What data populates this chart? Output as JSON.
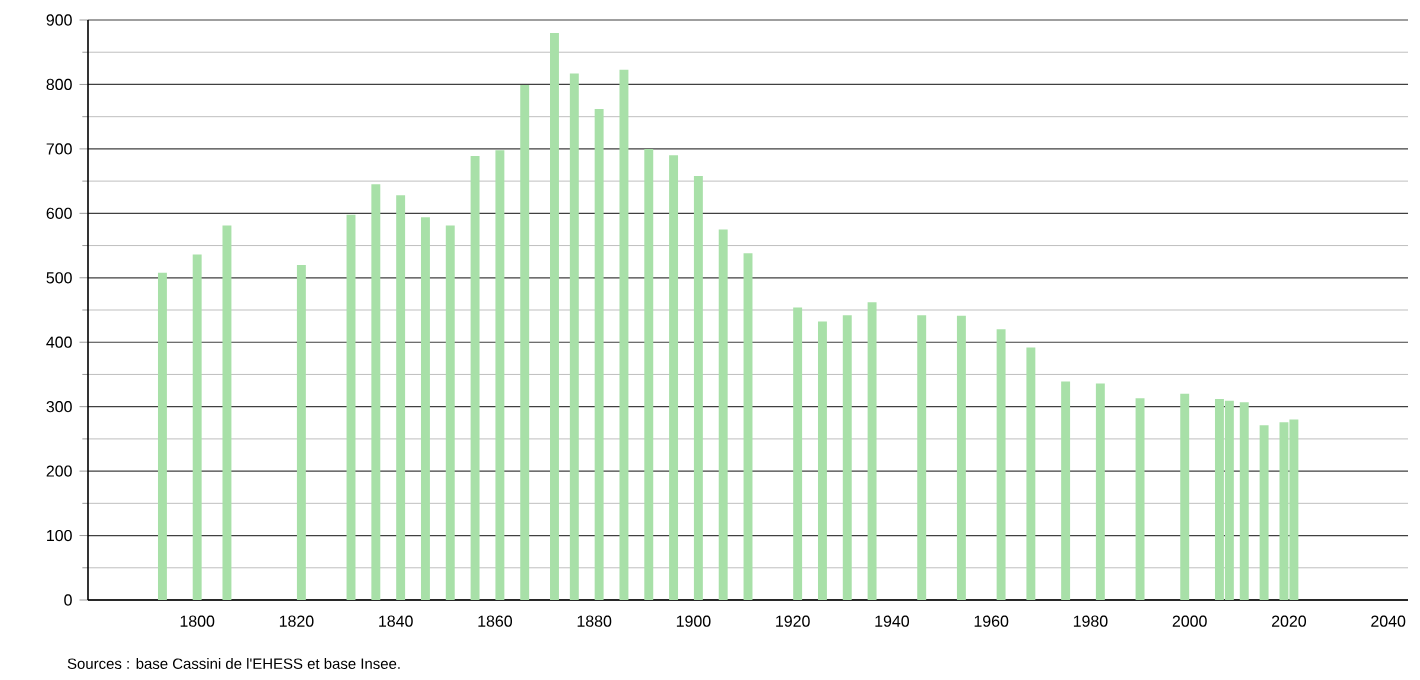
{
  "chart_data": {
    "type": "bar",
    "color": "#a8e0a8",
    "x": [
      1793,
      1800,
      1806,
      1821,
      1831,
      1836,
      1841,
      1846,
      1851,
      1856,
      1861,
      1866,
      1872,
      1876,
      1881,
      1886,
      1891,
      1896,
      1901,
      1906,
      1911,
      1921,
      1926,
      1931,
      1936,
      1946,
      1954,
      1962,
      1968,
      1975,
      1982,
      1990,
      1999,
      2006,
      2008,
      2011,
      2015,
      2019,
      2021
    ],
    "values": [
      508,
      536,
      581,
      520,
      598,
      645,
      628,
      594,
      581,
      689,
      698,
      799,
      880,
      817,
      762,
      823,
      700,
      690,
      658,
      575,
      538,
      454,
      432,
      442,
      462,
      442,
      441,
      420,
      392,
      339,
      336,
      313,
      320,
      312,
      309,
      307,
      271,
      276,
      280
    ],
    "xlim": [
      1778,
      2044
    ],
    "xticks": [
      1800,
      1820,
      1840,
      1860,
      1880,
      1900,
      1920,
      1940,
      1960,
      1980,
      2000,
      2020,
      2040
    ],
    "ylim": [
      0,
      900
    ],
    "yticks": [
      0,
      100,
      200,
      300,
      400,
      500,
      600,
      700,
      800,
      900
    ],
    "grid": "y",
    "annotations": [
      "Sources : base Cassini de l'EHESS et base Insee."
    ]
  }
}
